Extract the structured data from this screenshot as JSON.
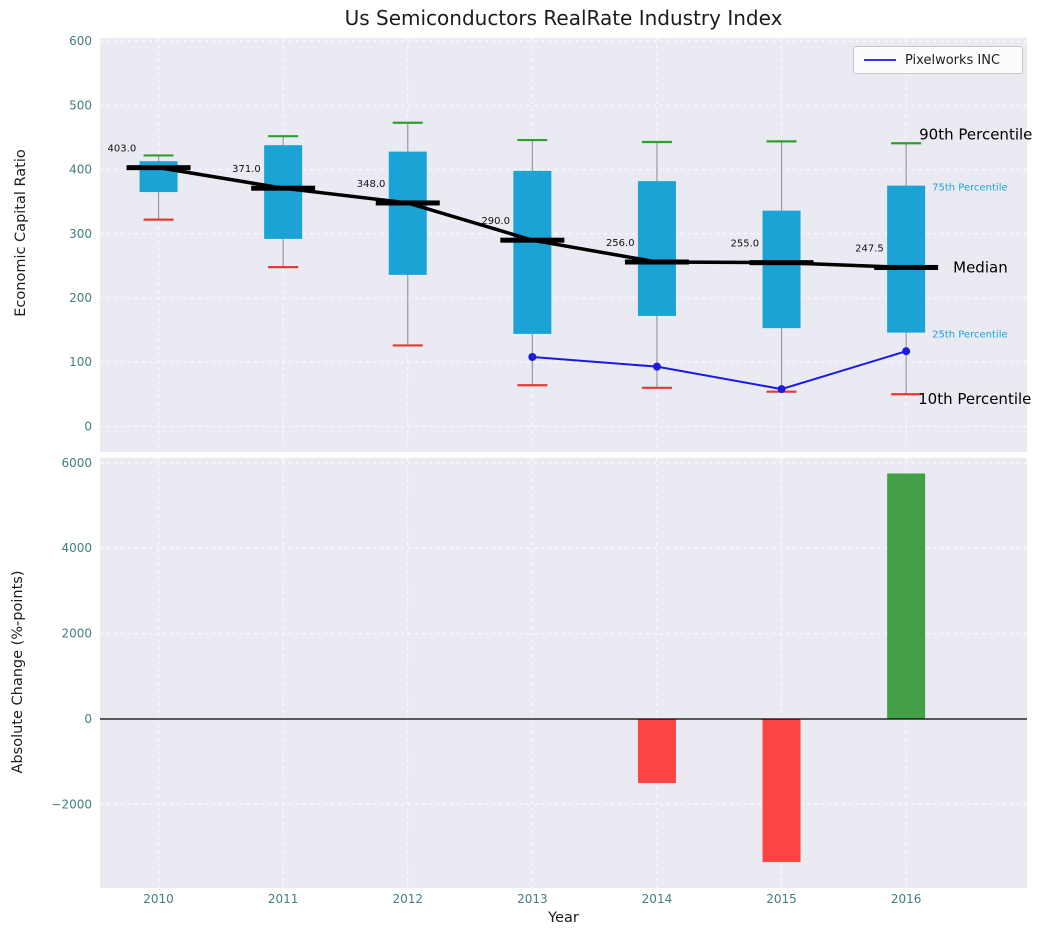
{
  "title": "Us Semiconductors RealRate Industry Index",
  "legend": {
    "label": "Pixelworks INC"
  },
  "chart_data": [
    {
      "type": "boxplot",
      "ylabel": "Economic Capital Ratio",
      "ylim": [
        -40,
        605
      ],
      "yticks": [
        0,
        100,
        200,
        300,
        400,
        500,
        600
      ],
      "xlim": [
        2009.53,
        2016.97
      ],
      "grid": true,
      "box_color": "#1ba3d6",
      "whisker_color": "#9a9a9a",
      "cap_top_color": "#2ca02c",
      "cap_bottom_color": "#e53935",
      "median_color": "#000000",
      "tick_color": "#3f7f7f",
      "boxes": [
        {
          "year": 2010,
          "p10": 322,
          "p25": 365,
          "median": 403.0,
          "p75": 413,
          "p90": 422,
          "label": "403.0"
        },
        {
          "year": 2011,
          "p10": 248,
          "p25": 292,
          "median": 371.0,
          "p75": 438,
          "p90": 452,
          "label": "371.0"
        },
        {
          "year": 2012,
          "p10": 126,
          "p25": 236,
          "median": 348.0,
          "p75": 428,
          "p90": 473,
          "label": "348.0"
        },
        {
          "year": 2013,
          "p10": 64,
          "p25": 144,
          "median": 290.0,
          "p75": 398,
          "p90": 446,
          "label": "290.0"
        },
        {
          "year": 2014,
          "p10": 60,
          "p25": 172,
          "median": 256.0,
          "p75": 382,
          "p90": 443,
          "label": "256.0"
        },
        {
          "year": 2015,
          "p10": 54,
          "p25": 153,
          "median": 255.0,
          "p75": 336,
          "p90": 444,
          "label": "255.0"
        },
        {
          "year": 2016,
          "p10": 50,
          "p25": 146,
          "median": 247.5,
          "p75": 375,
          "p90": 441,
          "label": "247.5"
        }
      ],
      "series": [
        {
          "name": "Pixelworks INC",
          "color": "#1a1ae0",
          "x": [
            2013,
            2014,
            2015,
            2016
          ],
          "y": [
            108,
            93,
            58,
            117
          ]
        }
      ],
      "percentile_annotations": [
        {
          "text": "90th Percentile",
          "size": "large",
          "color": "#000000"
        },
        {
          "text": "75th Percentile",
          "size": "small",
          "color": "#1ba3d6"
        },
        {
          "text": "Median",
          "size": "large",
          "color": "#000000"
        },
        {
          "text": "25th Percentile",
          "size": "small",
          "color": "#1ba3d6"
        },
        {
          "text": "10th Percentile",
          "size": "large",
          "color": "#000000"
        }
      ]
    },
    {
      "type": "bar",
      "ylabel": "Absolute Change (%-points)",
      "xlabel": "Year",
      "ylim": [
        -3957,
        6112
      ],
      "yticks": [
        -2000,
        0,
        2000,
        4000,
        6000
      ],
      "categories": [
        2010,
        2011,
        2012,
        2013,
        2014,
        2015,
        2016
      ],
      "values": [
        null,
        null,
        null,
        null,
        -1500,
        -3350,
        5750
      ],
      "pos_color": "#43a047",
      "neg_color": "#fb4545",
      "tick_color": "#3f7f7f"
    }
  ]
}
